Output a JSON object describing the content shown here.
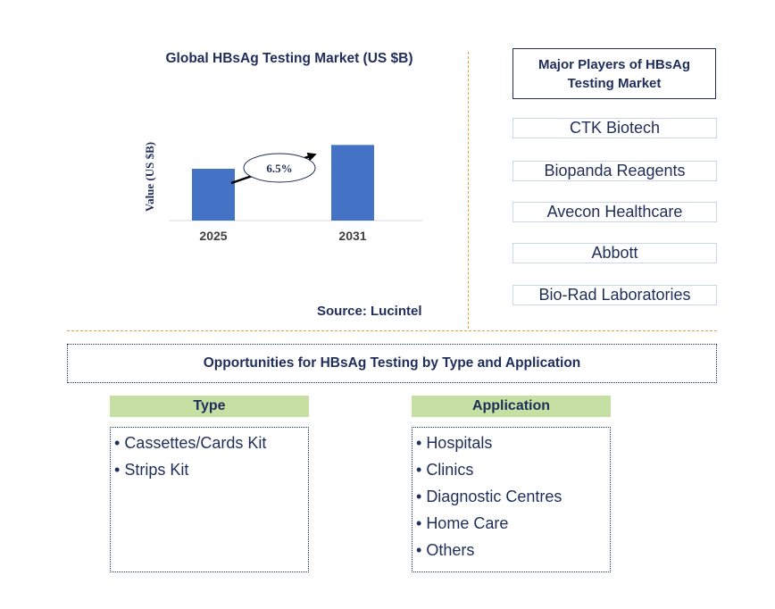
{
  "chart_data": {
    "type": "bar",
    "title": "Global HBsAg Testing Market (US $B)",
    "ylabel": "Value (US $B)",
    "categories": [
      "2025",
      "2031"
    ],
    "values": [
      1.0,
      1.46
    ],
    "cagr_label": "6.5%",
    "grid": false,
    "bar_color": "#4472c4"
  },
  "source": "Source: Lucintel",
  "players": {
    "title": "Major Players of HBsAg Testing Market",
    "items": [
      "CTK Biotech",
      "Biopanda Reagents",
      "Avecon Healthcare",
      "Abbott",
      "Bio-Rad Laboratories"
    ]
  },
  "opportunities": {
    "title": "Opportunities for HBsAg Testing by Type and Application",
    "type": {
      "label": "Type",
      "items": [
        "Cassettes/Cards Kit",
        "Strips Kit"
      ]
    },
    "application": {
      "label": "Application",
      "items": [
        "Hospitals",
        "Clinics",
        "Diagnostic Centres",
        "Home Care",
        "Others"
      ]
    }
  },
  "colors": {
    "text": "#1f2d5a",
    "bar": "#4472c4",
    "divider": "#e0a040",
    "segment_header": "#c6e0a4"
  }
}
